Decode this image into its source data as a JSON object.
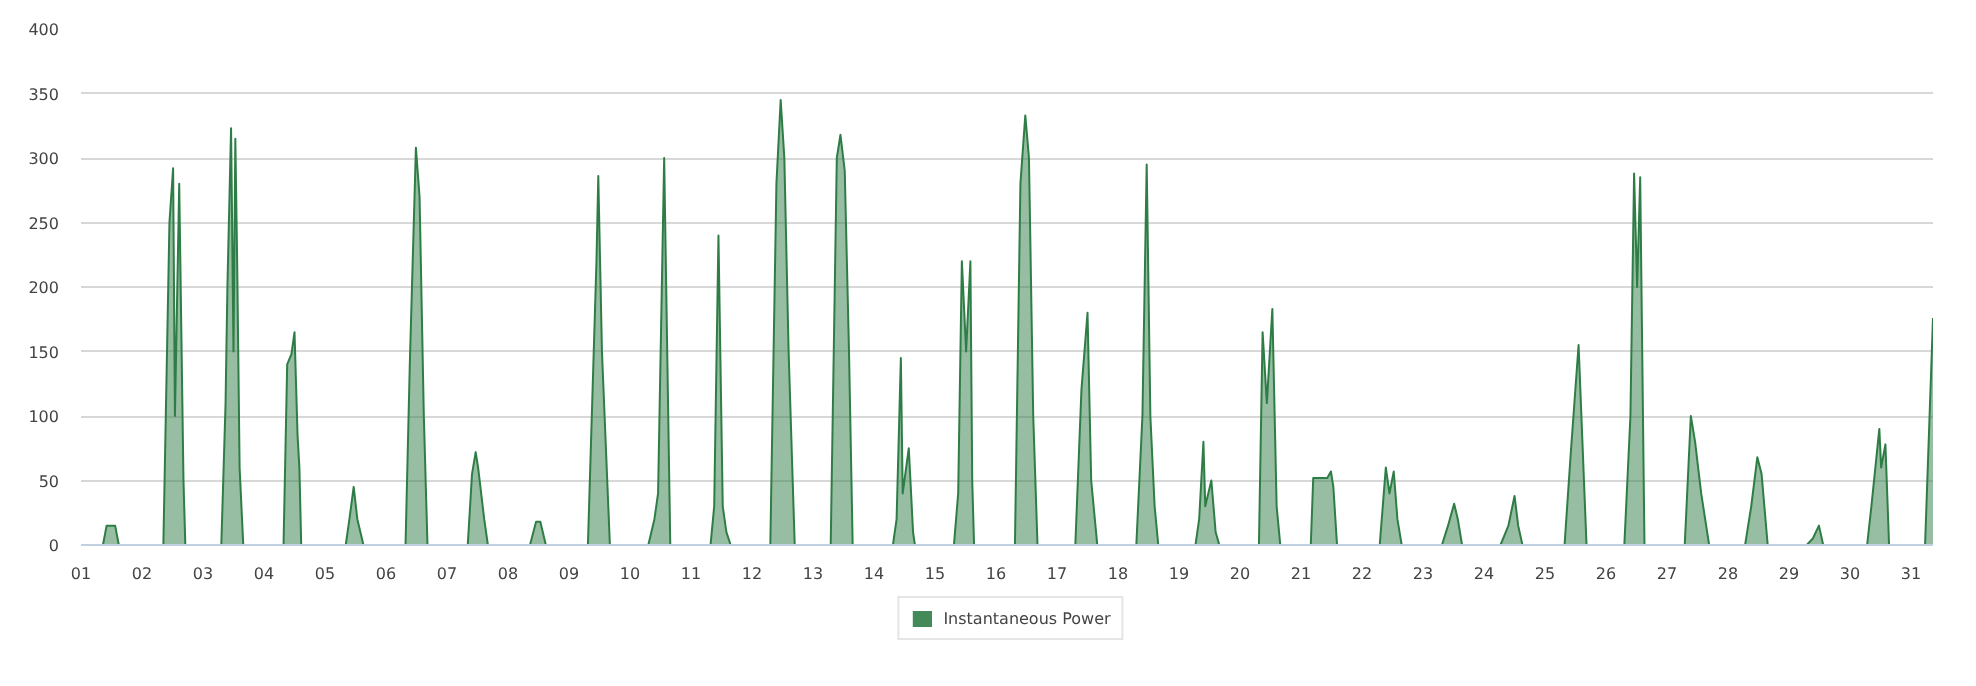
{
  "chart_data": {
    "type": "area",
    "legend": "bottom",
    "grid": "y",
    "xlim": [
      1,
      31.36
    ],
    "ylim": [
      0,
      400
    ],
    "xticks": [
      {
        "value": 1,
        "label": "01"
      },
      {
        "value": 2,
        "label": "02"
      },
      {
        "value": 3,
        "label": "03"
      },
      {
        "value": 4,
        "label": "04"
      },
      {
        "value": 5,
        "label": "05"
      },
      {
        "value": 6,
        "label": "06"
      },
      {
        "value": 7,
        "label": "07"
      },
      {
        "value": 8,
        "label": "08"
      },
      {
        "value": 9,
        "label": "09"
      },
      10,
      11,
      12,
      13,
      14,
      15,
      16,
      17,
      18,
      19,
      20,
      21,
      22,
      23,
      24,
      25,
      26,
      27,
      28,
      29,
      30,
      31
    ],
    "yticks": [
      0,
      50,
      100,
      150,
      200,
      250,
      300,
      350,
      400
    ],
    "series": [
      {
        "name": "Instantaneous Power",
        "color": "#2f7d46",
        "x": [
          1.0,
          1.36,
          1.42,
          1.56,
          1.62,
          2.35,
          2.45,
          2.51,
          2.54,
          2.61,
          2.68,
          2.71,
          3.3,
          3.37,
          3.4,
          3.46,
          3.5,
          3.53,
          3.56,
          3.6,
          3.66,
          4.32,
          4.38,
          4.45,
          4.5,
          4.55,
          4.58,
          4.61,
          5.34,
          5.4,
          5.47,
          5.53,
          5.63,
          6.32,
          6.39,
          6.49,
          6.55,
          6.62,
          6.68,
          7.34,
          7.41,
          7.47,
          7.51,
          7.61,
          7.67,
          8.36,
          8.46,
          8.53,
          8.62,
          9.31,
          9.45,
          9.48,
          9.54,
          9.67,
          10.3,
          10.4,
          10.46,
          10.56,
          10.61,
          10.66,
          11.32,
          11.38,
          11.45,
          11.52,
          11.58,
          11.65,
          12.3,
          12.4,
          12.47,
          12.53,
          12.6,
          12.7,
          13.29,
          13.39,
          13.45,
          13.52,
          13.59,
          13.65,
          14.31,
          14.37,
          14.44,
          14.47,
          14.57,
          14.64,
          14.67,
          15.31,
          15.38,
          15.44,
          15.51,
          15.58,
          15.61,
          15.64,
          16.31,
          16.4,
          16.48,
          16.54,
          16.61,
          16.68,
          17.3,
          17.4,
          17.5,
          17.56,
          17.66,
          18.3,
          18.4,
          18.47,
          18.53,
          18.6,
          18.66,
          19.27,
          19.33,
          19.4,
          19.43,
          19.53,
          19.6,
          19.66,
          20.31,
          20.37,
          20.44,
          20.53,
          20.6,
          20.66,
          21.16,
          21.2,
          21.43,
          21.49,
          21.53,
          21.59,
          22.29,
          22.39,
          22.45,
          22.52,
          22.58,
          22.65,
          23.31,
          23.41,
          23.51,
          23.57,
          23.64,
          24.27,
          24.4,
          24.5,
          24.56,
          24.63,
          25.32,
          25.42,
          25.55,
          25.68,
          26.3,
          26.4,
          26.46,
          26.51,
          26.56,
          26.63,
          27.29,
          27.39,
          27.46,
          27.56,
          27.69,
          28.28,
          28.38,
          28.48,
          28.55,
          28.65,
          29.29,
          29.39,
          29.49,
          29.56,
          30.28,
          30.35,
          30.48,
          30.51,
          30.58,
          30.64,
          31.23,
          31.36
        ],
        "values": [
          0,
          0,
          15,
          15,
          0,
          0,
          250,
          292,
          100,
          280,
          50,
          0,
          0,
          110,
          200,
          323,
          150,
          315,
          220,
          60,
          0,
          0,
          140,
          148,
          165,
          85,
          60,
          0,
          0,
          20,
          45,
          20,
          0,
          0,
          140,
          308,
          270,
          100,
          0,
          0,
          55,
          72,
          60,
          20,
          0,
          0,
          18,
          18,
          0,
          0,
          220,
          286,
          150,
          0,
          0,
          20,
          40,
          300,
          150,
          0,
          0,
          30,
          240,
          30,
          10,
          0,
          0,
          280,
          345,
          300,
          150,
          0,
          0,
          300,
          318,
          290,
          150,
          0,
          0,
          20,
          145,
          40,
          75,
          10,
          0,
          0,
          40,
          220,
          150,
          220,
          50,
          0,
          0,
          280,
          333,
          300,
          100,
          0,
          0,
          120,
          180,
          50,
          0,
          0,
          100,
          295,
          100,
          30,
          0,
          0,
          20,
          80,
          30,
          50,
          10,
          0,
          0,
          165,
          110,
          183,
          30,
          0,
          0,
          52,
          52,
          57,
          45,
          0,
          0,
          60,
          40,
          57,
          20,
          0,
          0,
          15,
          32,
          20,
          0,
          0,
          15,
          38,
          15,
          0,
          0,
          70,
          155,
          0,
          0,
          100,
          288,
          200,
          285,
          0,
          0,
          100,
          80,
          40,
          0,
          0,
          30,
          68,
          55,
          0,
          0,
          5,
          15,
          0,
          0,
          30,
          90,
          60,
          78,
          0,
          0,
          176
        ]
      }
    ]
  }
}
